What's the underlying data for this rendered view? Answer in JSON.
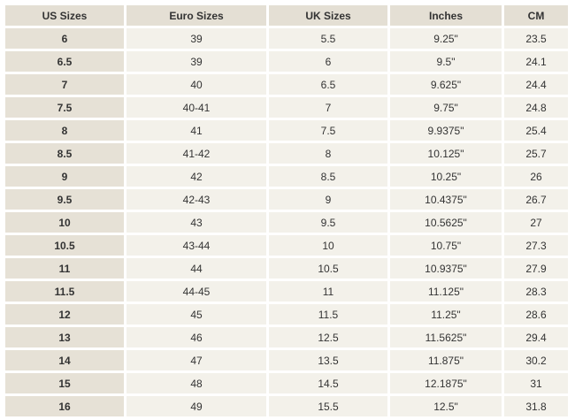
{
  "table": {
    "headers": [
      "US Sizes",
      "Euro Sizes",
      "UK Sizes",
      "Inches",
      "CM"
    ],
    "rows": [
      [
        "6",
        "39",
        "5.5",
        "9.25\"",
        "23.5"
      ],
      [
        "6.5",
        "39",
        "6",
        "9.5\"",
        "24.1"
      ],
      [
        "7",
        "40",
        "6.5",
        "9.625\"",
        "24.4"
      ],
      [
        "7.5",
        "40-41",
        "7",
        "9.75\"",
        "24.8"
      ],
      [
        "8",
        "41",
        "7.5",
        "9.9375\"",
        "25.4"
      ],
      [
        "8.5",
        "41-42",
        "8",
        "10.125\"",
        "25.7"
      ],
      [
        "9",
        "42",
        "8.5",
        "10.25\"",
        "26"
      ],
      [
        "9.5",
        "42-43",
        "9",
        "10.4375\"",
        "26.7"
      ],
      [
        "10",
        "43",
        "9.5",
        "10.5625\"",
        "27"
      ],
      [
        "10.5",
        "43-44",
        "10",
        "10.75\"",
        "27.3"
      ],
      [
        "11",
        "44",
        "10.5",
        "10.9375\"",
        "27.9"
      ],
      [
        "11.5",
        "44-45",
        "11",
        "11.125\"",
        "28.3"
      ],
      [
        "12",
        "45",
        "11.5",
        "11.25\"",
        "28.6"
      ],
      [
        "13",
        "46",
        "12.5",
        "11.5625\"",
        "29.4"
      ],
      [
        "14",
        "47",
        "13.5",
        "11.875\"",
        "30.2"
      ],
      [
        "15",
        "48",
        "14.5",
        "12.1875\"",
        "31"
      ],
      [
        "16",
        "49",
        "15.5",
        "12.5\"",
        "31.8"
      ]
    ]
  },
  "colors": {
    "header_bg": "#e4dfd4",
    "first_col_bg": "#e6e1d6",
    "cell_bg": "#f3f1ea"
  }
}
